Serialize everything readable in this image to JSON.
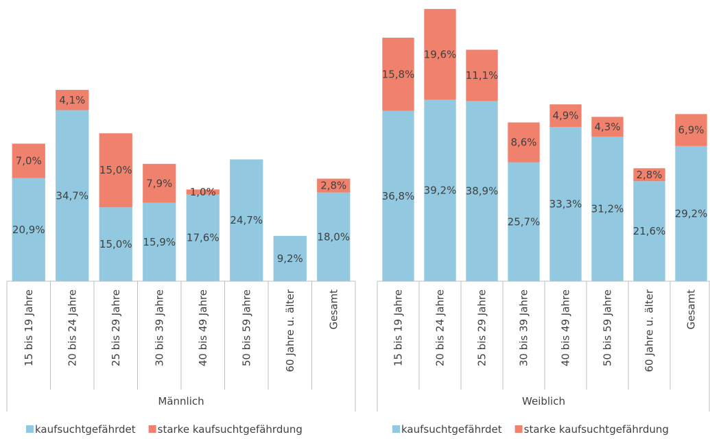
{
  "chart_data": [
    {
      "type": "bar",
      "stacked": true,
      "x_label": "Männlich",
      "legend": "bottom",
      "categories": [
        "15 bis 19 Jahre",
        "20 bis 24 Jahre",
        "25 bis 29 Jahre",
        "30 bis 39 Jahre",
        "40 bis 49 Jahre",
        "50 bis 59 Jahre",
        "60 Jahre u. älter",
        "Gesamt"
      ],
      "series": [
        {
          "name": "kaufsuchtgefährdet",
          "color": "#92c9e0",
          "values": [
            20.9,
            34.7,
            15.0,
            15.9,
            17.6,
            24.7,
            9.2,
            18.0
          ],
          "value_labels": [
            "20,9%",
            "34,7%",
            "15,0%",
            "15,9%",
            "17,6%",
            "24,7%",
            "9,2%",
            "18,0%"
          ]
        },
        {
          "name": "starke kaufsuchtgefährdung",
          "color": "#f0826d",
          "values": [
            7.0,
            4.1,
            15.0,
            7.9,
            1.0,
            0,
            0,
            2.8
          ],
          "value_labels": [
            "7,0%",
            "4,1%",
            "15,0%",
            "7,9%",
            "1,0%",
            null,
            null,
            "2,8%"
          ]
        }
      ]
    },
    {
      "type": "bar",
      "stacked": true,
      "x_label": "Weiblich",
      "legend": "bottom",
      "categories": [
        "15 bis 19 Jahre",
        "20 bis 24 Jahre",
        "25 bis 29 Jahre",
        "30 bis 39 Jahre",
        "40 bis 49 Jahre",
        "50 bis 59 Jahre",
        "60 Jahre u. älter",
        "Gesamt"
      ],
      "series": [
        {
          "name": "kaufsuchtgefährdet",
          "color": "#92c9e0",
          "values": [
            36.8,
            39.2,
            38.9,
            25.7,
            33.3,
            31.2,
            21.6,
            29.2
          ],
          "value_labels": [
            "36,8%",
            "39,2%",
            "38,9%",
            "25,7%",
            "33,3%",
            "31,2%",
            "21,6%",
            "29,2%"
          ]
        },
        {
          "name": "starke kaufsuchtgefährdung",
          "color": "#f0826d",
          "values": [
            15.8,
            19.6,
            11.1,
            8.6,
            4.9,
            4.3,
            2.8,
            6.9
          ],
          "value_labels": [
            "15,8%",
            "19,6%",
            "11,1%",
            "8,6%",
            "4,9%",
            "4,3%",
            "2,8%",
            "6,9%"
          ]
        }
      ]
    }
  ]
}
